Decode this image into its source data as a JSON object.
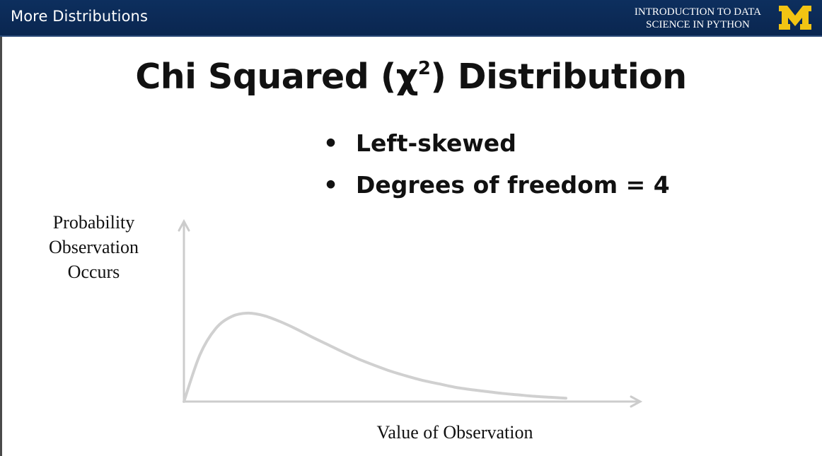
{
  "header": {
    "title": "More Distributions",
    "course_line1": "INTRODUCTION TO DATA",
    "course_line2": "SCIENCE  IN PYTHON",
    "logo_text": "M",
    "logo_color": "#f2c413"
  },
  "slide": {
    "title_prefix": "Chi Squared (χ",
    "title_superscript": "2",
    "title_suffix": ") Distribution",
    "bullet_symbol": "•",
    "bullets": [
      {
        "text": "Left-skewed"
      },
      {
        "text": "Degrees of freedom = 4"
      }
    ]
  },
  "chart_data": {
    "type": "line",
    "ylabel_lines": [
      "Probability",
      "Observation",
      "Occurs"
    ],
    "xlabel": "Value of Observation",
    "line_color": "#d0d0d0",
    "axis_color": "#cccccc",
    "series": [
      {
        "x": [
          0,
          0.5,
          1,
          1.5,
          2,
          2.5,
          3,
          3.5,
          4,
          4.5,
          5,
          5.5,
          6,
          6.5,
          7,
          7.5,
          8,
          8.5,
          9,
          9.5,
          10,
          10.5,
          11,
          11.5,
          12
        ],
        "values": [
          0,
          0.097,
          0.152,
          0.177,
          0.184,
          0.179,
          0.167,
          0.152,
          0.135,
          0.119,
          0.103,
          0.088,
          0.075,
          0.063,
          0.053,
          0.044,
          0.037,
          0.03,
          0.025,
          0.021,
          0.017,
          0.014,
          0.011,
          0.009,
          0.007
        ]
      }
    ]
  }
}
